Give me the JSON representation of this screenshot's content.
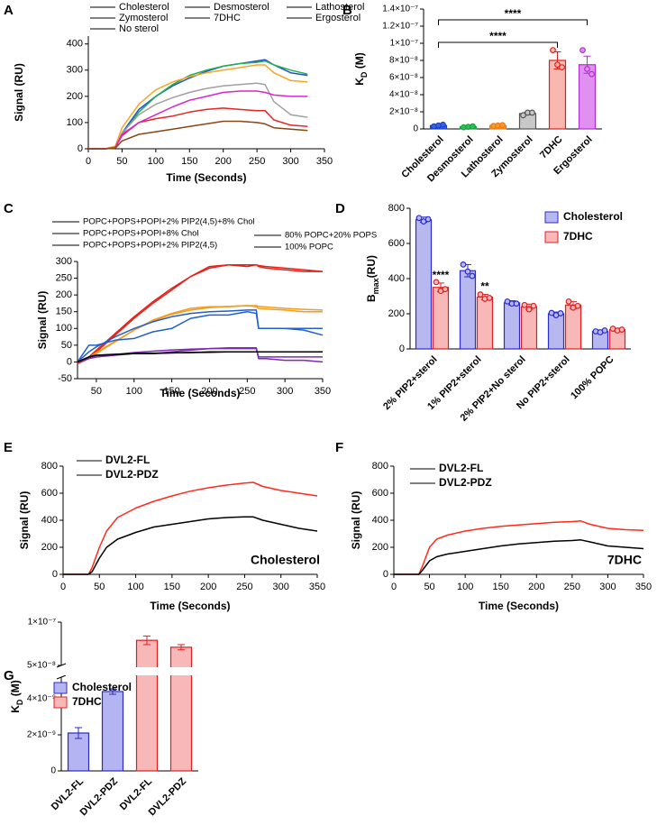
{
  "chart_data": [
    {
      "panel": "A",
      "type": "line",
      "x_label": "Time (Seconds)",
      "y_label": "Signal (RU)",
      "xlim": [
        0,
        350
      ],
      "xticks": [
        0,
        50,
        100,
        150,
        200,
        250,
        300,
        350
      ],
      "ylim": [
        0,
        430
      ],
      "yticks": [
        0,
        100,
        200,
        300,
        400
      ],
      "x": [
        0,
        25,
        40,
        50,
        75,
        100,
        125,
        150,
        175,
        200,
        225,
        250,
        262,
        275,
        300,
        325
      ],
      "series": [
        {
          "name": "Cholesterol",
          "color": "#1f4fd6",
          "values": [
            0,
            0,
            5,
            60,
            150,
            200,
            240,
            270,
            295,
            315,
            325,
            335,
            340,
            320,
            290,
            280
          ]
        },
        {
          "name": "Desmosterol",
          "color": "#22b04a",
          "values": [
            0,
            0,
            5,
            55,
            140,
            200,
            245,
            280,
            300,
            315,
            325,
            330,
            335,
            320,
            300,
            285
          ]
        },
        {
          "name": "Lathosterol",
          "color": "#f5a623",
          "values": [
            0,
            0,
            10,
            80,
            170,
            225,
            255,
            275,
            290,
            300,
            310,
            320,
            320,
            290,
            260,
            255
          ]
        },
        {
          "name": "Zymosterol",
          "color": "#a0a0a0",
          "values": [
            0,
            0,
            5,
            60,
            130,
            170,
            195,
            215,
            230,
            240,
            245,
            250,
            245,
            180,
            130,
            120
          ]
        },
        {
          "name": "7DHC",
          "color": "#e8251f",
          "values": [
            0,
            0,
            5,
            50,
            100,
            115,
            125,
            140,
            150,
            155,
            150,
            145,
            145,
            110,
            90,
            85
          ]
        },
        {
          "name": "Ergosterol",
          "color": "#d926c9",
          "values": [
            0,
            0,
            5,
            55,
            100,
            130,
            160,
            185,
            200,
            215,
            220,
            220,
            215,
            205,
            200,
            200
          ]
        },
        {
          "name": "No sterol",
          "color": "#8b4513",
          "values": [
            0,
            0,
            2,
            30,
            55,
            65,
            75,
            85,
            95,
            105,
            105,
            100,
            95,
            80,
            75,
            70
          ]
        }
      ]
    },
    {
      "panel": "B",
      "type": "bar",
      "y_label_parts": [
        "K",
        "D",
        " (M)"
      ],
      "categories": [
        "Cholesterol",
        "Desmosterol",
        "Lathosterol",
        "Zymosterol",
        "7DHC",
        "Ergosterol"
      ],
      "values": [
        4e-09,
        2.5e-09,
        4e-09,
        1.8e-08,
        8e-08,
        7.5e-08
      ],
      "errors": [
        1e-09,
        5e-10,
        5e-10,
        1.5e-09,
        1e-08,
        1e-08
      ],
      "points": [
        [
          3e-09,
          4e-09,
          5e-09
        ],
        [
          2e-09,
          2.5e-09,
          3e-09
        ],
        [
          3.5e-09,
          4e-09,
          4.5e-09
        ],
        [
          1.6e-08,
          1.9e-08,
          1.9e-08
        ],
        [
          9.2e-08,
          7.5e-08,
          7.2e-08
        ],
        [
          9.2e-08,
          7e-08,
          6.4e-08
        ]
      ],
      "colors": [
        "#1a3fd0",
        "#18a040",
        "#f07a10",
        "#555555",
        "#e0201a",
        "#b030d0"
      ],
      "fills": [
        "#3b62e0",
        "#2cc050",
        "#f59a30",
        "#c8c8c8",
        "#f8b8b0",
        "#e090f0"
      ],
      "ylim": [
        0,
        1.4e-07
      ],
      "yticks": [
        0,
        {
          "value": 2e-08,
          "label": "2×10⁻⁸"
        },
        {
          "value": 4e-08,
          "label": "4×10⁻⁸"
        },
        {
          "value": 6e-08,
          "label": "6×10⁻⁸"
        },
        {
          "value": 8e-08,
          "label": "8×10⁻⁸"
        },
        {
          "value": 1e-07,
          "label": "1×10⁻⁷"
        },
        {
          "value": 1.2e-07,
          "label": "1.2×10⁻⁷"
        },
        {
          "value": 1.4e-07,
          "label": "1.4×10⁻⁷"
        }
      ],
      "comparisons": [
        {
          "pair": [
            "Cholesterol",
            "7DHC"
          ],
          "label": "****"
        },
        {
          "pair": [
            "Cholesterol",
            "Ergosterol"
          ],
          "label": "****"
        }
      ]
    },
    {
      "panel": "C",
      "type": "line",
      "x_label": "Time (Seconds)",
      "y_label": "Signal (RU)",
      "xlim": [
        25,
        350
      ],
      "xticks": [
        50,
        100,
        150,
        200,
        250,
        300,
        350
      ],
      "ylim": [
        -50,
        300
      ],
      "yticks": [
        -50,
        0,
        50,
        100,
        150,
        200,
        250,
        300
      ],
      "x": [
        25,
        40,
        50,
        75,
        100,
        125,
        150,
        175,
        200,
        225,
        250,
        262,
        265,
        275,
        300,
        325,
        350
      ],
      "series": [
        {
          "name": "POPC+POPS+POPI+2% PIP2(4,5)+8% Chol",
          "color": "#e3241b",
          "values": [
            -5,
            10,
            30,
            80,
            130,
            175,
            215,
            255,
            285,
            290,
            285,
            290,
            285,
            280,
            275,
            270,
            270
          ],
          "fit": [
            0,
            15,
            35,
            85,
            135,
            180,
            220,
            255,
            280,
            290,
            290,
            290,
            288,
            285,
            280,
            275,
            270
          ]
        },
        {
          "name": "POPC+POPS+POPI+8% Chol",
          "color": "#f39c1f",
          "values": [
            0,
            10,
            25,
            60,
            95,
            125,
            145,
            160,
            165,
            165,
            168,
            165,
            160,
            158,
            155,
            150,
            150
          ],
          "fit": [
            0,
            12,
            28,
            62,
            95,
            122,
            142,
            155,
            162,
            166,
            168,
            168,
            166,
            164,
            160,
            157,
            155
          ]
        },
        {
          "name": "80% POPC+20% POPS",
          "color": "#7b2bb5",
          "values": [
            0,
            10,
            15,
            20,
            25,
            25,
            30,
            35,
            40,
            40,
            40,
            40,
            10,
            10,
            5,
            5,
            0
          ],
          "fit": [
            0,
            10,
            15,
            22,
            28,
            32,
            36,
            38,
            40,
            42,
            42,
            42,
            15,
            15,
            15,
            15,
            15
          ]
        },
        {
          "name": "POPC+POPS+POPI+2% PIP2(4,5)",
          "color": "#1f5fd0",
          "values": [
            0,
            50,
            50,
            65,
            70,
            90,
            100,
            130,
            140,
            140,
            150,
            145,
            100,
            100,
            100,
            95,
            80
          ],
          "fit": [
            0,
            30,
            45,
            75,
            100,
            120,
            135,
            145,
            150,
            152,
            155,
            155,
            100,
            100,
            100,
            100,
            100
          ]
        },
        {
          "name": "100% POPC",
          "color": "#000000",
          "values": [
            0,
            15,
            20,
            22,
            25,
            25,
            27,
            28,
            30,
            30,
            30,
            30,
            30,
            30,
            30,
            30,
            30
          ],
          "fit": [
            0,
            15,
            20,
            23,
            25,
            26,
            27,
            28,
            29,
            30,
            30,
            30,
            30,
            30,
            30,
            30,
            30
          ]
        }
      ]
    },
    {
      "panel": "D",
      "type": "bar",
      "y_label_parts": [
        "B",
        "max",
        "(RU)"
      ],
      "categories": [
        "2% PIP2+sterol",
        "1% PIP2+sterol",
        "2% PIP2+No sterol",
        "No PIP2+sterol",
        "100% POPC"
      ],
      "ylim": [
        0,
        800
      ],
      "yticks": [
        0,
        200,
        400,
        600,
        800
      ],
      "series": [
        {
          "name": "Cholesterol",
          "color": "#2b2bd0",
          "fill": "#b8b8f0",
          "values": [
            735,
            445,
            262,
            200,
            100
          ],
          "errors": [
            15,
            35,
            12,
            10,
            8
          ],
          "points": [
            [
              745,
              725,
              738
            ],
            [
              480,
              440,
              415
            ],
            [
              270,
              258,
              258
            ],
            [
              205,
              192,
              203
            ],
            [
              100,
              95,
              105
            ]
          ]
        },
        {
          "name": "7DHC",
          "color": "#e02020",
          "fill": "#f8b8b8",
          "values": [
            350,
            295,
            240,
            250,
            110
          ],
          "errors": [
            25,
            15,
            15,
            20,
            8
          ],
          "points": [
            [
              380,
              330,
              340
            ],
            [
              310,
              285,
              290
            ],
            [
              250,
              225,
              245
            ],
            [
              270,
              235,
              245
            ],
            [
              115,
              105,
              110
            ]
          ]
        }
      ],
      "significance": [
        {
          "category": "2% PIP2+sterol",
          "series": "7DHC",
          "label": "****"
        },
        {
          "category": "1% PIP2+sterol",
          "series": "7DHC",
          "label": "**"
        }
      ]
    },
    {
      "panel": "E",
      "type": "line",
      "x_label": "Time (Seconds)",
      "y_label": "Signal (RU)",
      "annotation": "Cholesterol",
      "xlim": [
        0,
        350
      ],
      "xticks": [
        0,
        50,
        100,
        150,
        200,
        250,
        300,
        350
      ],
      "ylim": [
        0,
        800
      ],
      "yticks": [
        0,
        200,
        400,
        600,
        800
      ],
      "x": [
        0,
        35,
        40,
        50,
        60,
        75,
        100,
        125,
        150,
        175,
        200,
        225,
        250,
        262,
        275,
        300,
        325,
        350
      ],
      "series": [
        {
          "name": "DVL2-FL",
          "color": "#ff2a1a",
          "values": [
            0,
            0,
            50,
            200,
            320,
            420,
            490,
            540,
            580,
            615,
            640,
            660,
            675,
            680,
            650,
            620,
            600,
            580
          ]
        },
        {
          "name": "DVL2-PDZ",
          "color": "#000000",
          "values": [
            0,
            0,
            20,
            120,
            200,
            260,
            310,
            350,
            370,
            390,
            410,
            420,
            425,
            425,
            400,
            370,
            340,
            320
          ]
        }
      ]
    },
    {
      "panel": "F",
      "type": "line",
      "x_label": "Time (Seconds)",
      "y_label": "Signal (RU)",
      "annotation": "7DHC",
      "xlim": [
        0,
        350
      ],
      "xticks": [
        0,
        50,
        100,
        150,
        200,
        250,
        300,
        350
      ],
      "ylim": [
        0,
        800
      ],
      "yticks": [
        0,
        200,
        400,
        600,
        800
      ],
      "x": [
        0,
        35,
        40,
        50,
        60,
        75,
        100,
        125,
        150,
        175,
        200,
        225,
        250,
        262,
        275,
        300,
        325,
        350
      ],
      "series": [
        {
          "name": "DVL2-FL",
          "color": "#ff2a1a",
          "values": [
            0,
            0,
            60,
            200,
            260,
            290,
            320,
            340,
            355,
            365,
            375,
            385,
            390,
            395,
            370,
            340,
            330,
            325
          ]
        },
        {
          "name": "DVL2-PDZ",
          "color": "#000000",
          "values": [
            0,
            0,
            30,
            100,
            130,
            150,
            170,
            190,
            210,
            225,
            235,
            245,
            250,
            255,
            240,
            210,
            200,
            190
          ]
        }
      ]
    },
    {
      "panel": "G",
      "type": "bar",
      "y_label_parts": [
        "K",
        "D",
        " (M)"
      ],
      "categories": [
        "DVL2-FL",
        "DVL2-PDZ",
        "DVL2-FL",
        "DVL2-PDZ"
      ],
      "ylim": [
        0,
        1e-07
      ],
      "y_break": [
        5.2e-09,
        5e-08
      ],
      "yticks": [
        0,
        {
          "value": 2e-09,
          "label": "2×10⁻⁹"
        },
        {
          "value": 4e-09,
          "label": "4×10⁻⁹"
        },
        {
          "value": 5e-08,
          "label": "5×10⁻⁸"
        },
        {
          "value": 1e-07,
          "label": "1×10⁻⁷"
        }
      ],
      "series": [
        {
          "name": "Cholesterol",
          "color": "#2a2ac8",
          "fill": "#b4b4f2",
          "values": [
            2.1e-09,
            4.4e-09,
            null,
            null
          ],
          "errors": [
            3e-10,
            1.5e-10,
            null,
            null
          ]
        },
        {
          "name": "7DHC",
          "color": "#e02020",
          "fill": "#f8b8b8",
          "values": [
            null,
            null,
            7.9e-08,
            7.1e-08
          ],
          "errors": [
            null,
            null,
            5e-09,
            3e-09
          ]
        }
      ]
    }
  ]
}
